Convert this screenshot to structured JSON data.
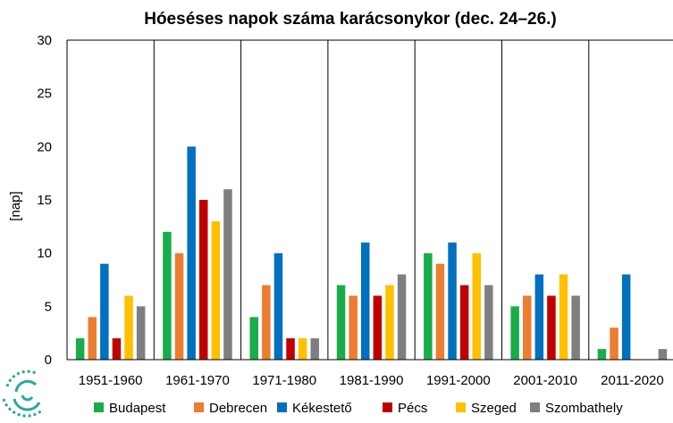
{
  "chart_data": {
    "type": "bar",
    "title": "Hóeséses napok száma karácsonykor (dec. 24–26.)",
    "ylabel": "[nap]",
    "xlabel": "",
    "ylim": [
      0,
      30
    ],
    "yticks": [
      0,
      5,
      10,
      15,
      20,
      25,
      30
    ],
    "grid": false,
    "legend_position": "bottom",
    "categories": [
      "1951-1960",
      "1961-1970",
      "1971-1980",
      "1981-1990",
      "1991-2000",
      "2001-2010",
      "2011-2020"
    ],
    "series": [
      {
        "name": "Budapest",
        "color": "#1aac4b",
        "values": [
          2,
          12,
          4,
          7,
          10,
          5,
          1
        ]
      },
      {
        "name": "Debrecen",
        "color": "#ed7d31",
        "values": [
          4,
          10,
          7,
          6,
          9,
          6,
          3
        ]
      },
      {
        "name": "Kékestető",
        "color": "#0070c0",
        "values": [
          9,
          20,
          10,
          11,
          11,
          8,
          8
        ]
      },
      {
        "name": "Pécs",
        "color": "#c00000",
        "values": [
          2,
          15,
          2,
          6,
          7,
          6,
          0
        ]
      },
      {
        "name": "Szeged",
        "color": "#ffc000",
        "values": [
          6,
          13,
          2,
          7,
          10,
          8,
          0
        ]
      },
      {
        "name": "Szombathely",
        "color": "#7f7f7f",
        "values": [
          5,
          16,
          2,
          8,
          7,
          6,
          1
        ]
      }
    ]
  },
  "logo": {
    "name": "logo-icon",
    "color": "#2aa8a0"
  }
}
